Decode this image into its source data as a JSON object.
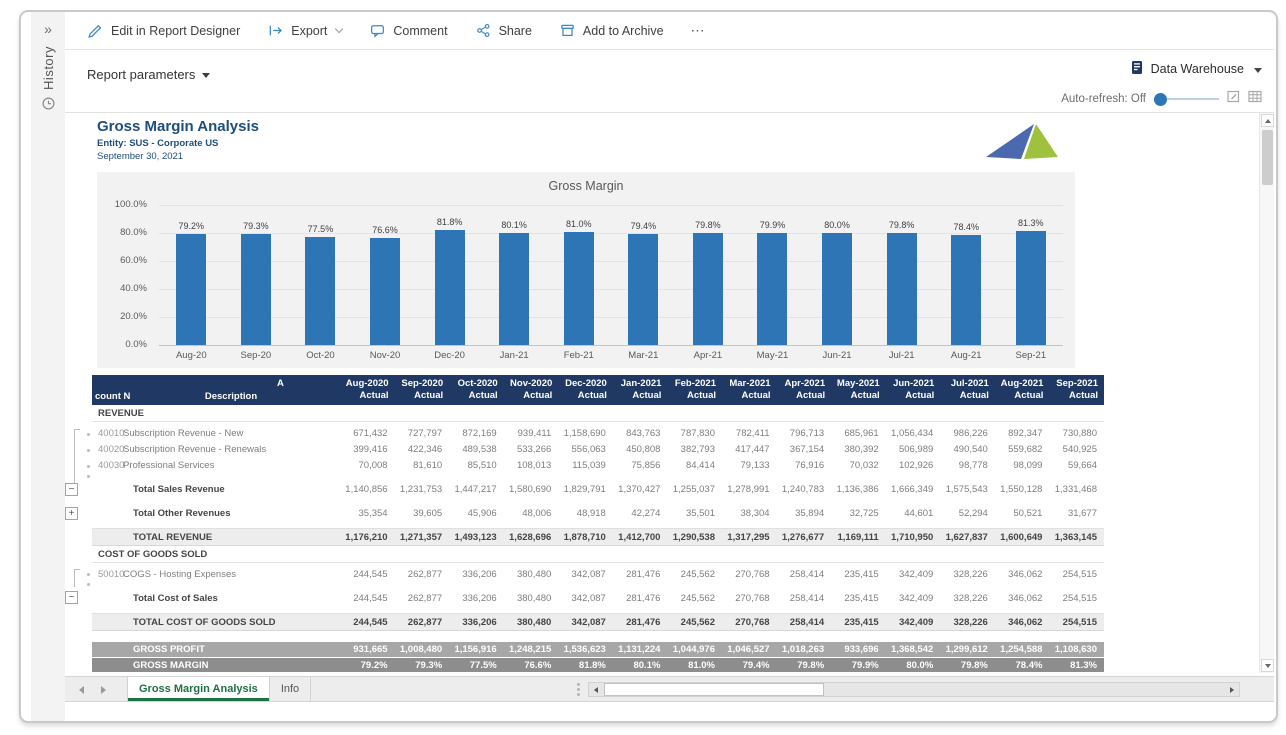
{
  "rail": {
    "collapse_icon": "»",
    "history_label": "History"
  },
  "toolbar": {
    "edit_label": "Edit in Report Designer",
    "export_label": "Export",
    "comment_label": "Comment",
    "share_label": "Share",
    "archive_label": "Add to Archive",
    "more_label": "⋯"
  },
  "params_bar": {
    "report_parameters_label": "Report parameters"
  },
  "source_selector": {
    "label": "Data Warehouse"
  },
  "auto_refresh": {
    "label": "Auto-refresh: Off"
  },
  "report_header": {
    "title": "Gross Margin Analysis",
    "entity": "Entity: SUS - Corporate US",
    "date": "September 30, 2021"
  },
  "chart_data": {
    "type": "bar",
    "title": "Gross Margin",
    "categories": [
      "Aug-20",
      "Sep-20",
      "Oct-20",
      "Nov-20",
      "Dec-20",
      "Jan-21",
      "Feb-21",
      "Mar-21",
      "Apr-21",
      "May-21",
      "Jun-21",
      "Jul-21",
      "Aug-21",
      "Sep-21"
    ],
    "values": [
      79.2,
      79.3,
      77.5,
      76.6,
      81.8,
      80.1,
      81.0,
      79.4,
      79.8,
      79.9,
      80.0,
      79.8,
      78.4,
      81.3
    ],
    "value_labels": [
      "79.2%",
      "79.3%",
      "77.5%",
      "76.6%",
      "81.8%",
      "80.1%",
      "81.0%",
      "79.4%",
      "79.8%",
      "79.9%",
      "80.0%",
      "79.8%",
      "78.4%",
      "81.3%"
    ],
    "ytick_labels": [
      "100.0%",
      "80.0%",
      "60.0%",
      "40.0%",
      "20.0%",
      "0.0%"
    ],
    "ylim": [
      0,
      100
    ],
    "grid": true,
    "legend": "none",
    "bar_color": "#2e75b6",
    "xlabel": "",
    "ylabel": ""
  },
  "table": {
    "header": {
      "account_fragment_top": "A",
      "account_label": "count N",
      "description_label": "Description",
      "sub_label": "Actual",
      "periods": [
        "Aug-2020",
        "Sep-2020",
        "Oct-2020",
        "Nov-2020",
        "Dec-2020",
        "Jan-2021",
        "Feb-2021",
        "Mar-2021",
        "Apr-2021",
        "May-2021",
        "Jun-2021",
        "Jul-2021",
        "Aug-2021",
        "Sep-2021"
      ]
    },
    "rows": [
      {
        "type": "section",
        "label": "REVENUE"
      },
      {
        "type": "detail",
        "account": "40010",
        "desc": "Subscription Revenue - New",
        "values": [
          "671,432",
          "727,797",
          "872,169",
          "939,411",
          "1,158,690",
          "843,763",
          "787,830",
          "782,411",
          "796,713",
          "685,961",
          "1,056,434",
          "986,226",
          "892,347",
          "730,880"
        ]
      },
      {
        "type": "detail",
        "account": "40020",
        "desc": "Subscription Revenue - Renewals",
        "values": [
          "399,416",
          "422,346",
          "489,538",
          "533,266",
          "556,063",
          "450,808",
          "382,793",
          "417,447",
          "367,154",
          "380,392",
          "506,989",
          "490,540",
          "559,682",
          "540,925"
        ]
      },
      {
        "type": "detail",
        "account": "40030",
        "desc": "Professional Services",
        "values": [
          "70,008",
          "81,610",
          "85,510",
          "108,013",
          "115,039",
          "75,856",
          "84,414",
          "79,133",
          "76,916",
          "70,032",
          "102,926",
          "98,778",
          "98,099",
          "59,664"
        ]
      },
      {
        "type": "subtotal",
        "account": "",
        "desc": "Total Sales Revenue",
        "values": [
          "1,140,856",
          "1,231,753",
          "1,447,217",
          "1,580,690",
          "1,829,791",
          "1,370,427",
          "1,255,037",
          "1,278,991",
          "1,240,783",
          "1,136,386",
          "1,666,349",
          "1,575,543",
          "1,550,128",
          "1,331,468"
        ]
      },
      {
        "type": "subtotal",
        "account": "",
        "desc": "Total Other Revenues",
        "values": [
          "35,354",
          "39,605",
          "45,906",
          "48,006",
          "48,918",
          "42,274",
          "35,501",
          "38,304",
          "35,894",
          "32,725",
          "44,601",
          "52,294",
          "50,521",
          "31,677"
        ]
      },
      {
        "type": "total",
        "account": "",
        "desc": "TOTAL REVENUE",
        "values": [
          "1,176,210",
          "1,271,357",
          "1,493,123",
          "1,628,696",
          "1,878,710",
          "1,412,700",
          "1,290,538",
          "1,317,295",
          "1,276,677",
          "1,169,111",
          "1,710,950",
          "1,627,837",
          "1,600,649",
          "1,363,145"
        ]
      },
      {
        "type": "section",
        "label": "COST OF GOODS SOLD"
      },
      {
        "type": "detail",
        "account": "50010",
        "desc": "COGS - Hosting Expenses",
        "values": [
          "244,545",
          "262,877",
          "336,206",
          "380,480",
          "342,087",
          "281,476",
          "245,562",
          "270,768",
          "258,414",
          "235,415",
          "342,409",
          "328,226",
          "346,062",
          "254,515"
        ]
      },
      {
        "type": "subtotal",
        "account": "",
        "desc": "Total Cost of Sales",
        "values": [
          "244,545",
          "262,877",
          "336,206",
          "380,480",
          "342,087",
          "281,476",
          "245,562",
          "270,768",
          "258,414",
          "235,415",
          "342,409",
          "328,226",
          "346,062",
          "254,515"
        ]
      },
      {
        "type": "total",
        "account": "",
        "desc": "TOTAL COST OF GOODS SOLD",
        "values": [
          "244,545",
          "262,877",
          "336,206",
          "380,480",
          "342,087",
          "281,476",
          "245,562",
          "270,768",
          "258,414",
          "235,415",
          "342,409",
          "328,226",
          "346,062",
          "254,515"
        ]
      },
      {
        "type": "gp",
        "account": "",
        "desc": "GROSS PROFIT",
        "values": [
          "931,665",
          "1,008,480",
          "1,156,916",
          "1,248,215",
          "1,536,623",
          "1,131,224",
          "1,044,976",
          "1,046,527",
          "1,018,263",
          "933,696",
          "1,368,542",
          "1,299,612",
          "1,254,588",
          "1,108,630"
        ]
      },
      {
        "type": "gm",
        "account": "",
        "desc": "GROSS MARGIN",
        "values": [
          "79.2%",
          "79.3%",
          "77.5%",
          "76.6%",
          "81.8%",
          "80.1%",
          "81.0%",
          "79.4%",
          "79.8%",
          "79.9%",
          "80.0%",
          "79.8%",
          "78.4%",
          "81.3%"
        ]
      }
    ]
  },
  "outline": {
    "collapse_label": "−",
    "expand_label": "+"
  },
  "tab_bar": {
    "tabs": [
      {
        "label": "Gross Margin Analysis"
      },
      {
        "label": "Info"
      }
    ]
  }
}
